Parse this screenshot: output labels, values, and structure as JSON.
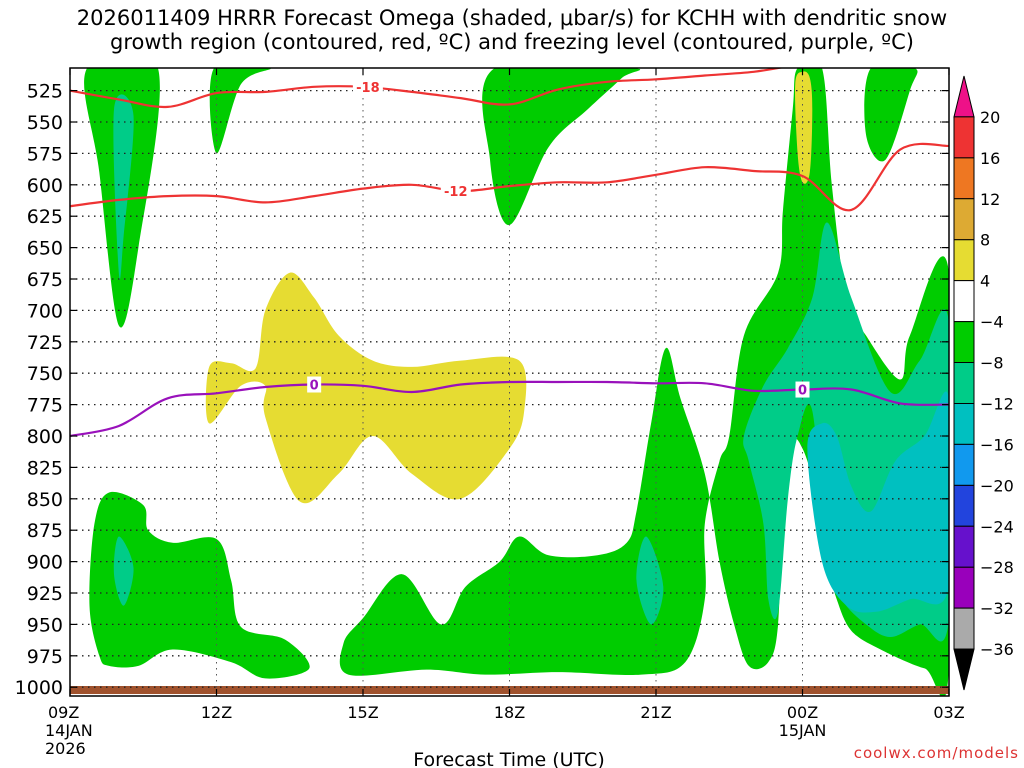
{
  "chart_data": {
    "type": "heatmap",
    "title_line1": "2026011409 HRRR Forecast Omega (shaded, μbar/s) for KCHH with dendritic snow",
    "title_line2": "growth region (contoured, red, ºC) and freezing level (contoured, purple, ºC)",
    "xlabel": "Forecast Time (UTC)",
    "ylabel": "",
    "x_ticks": [
      {
        "hour": 0,
        "label": "09Z",
        "sub1": "14JAN",
        "sub2": "2026"
      },
      {
        "hour": 3,
        "label": "12Z"
      },
      {
        "hour": 6,
        "label": "15Z"
      },
      {
        "hour": 9,
        "label": "18Z"
      },
      {
        "hour": 12,
        "label": "21Z"
      },
      {
        "hour": 15,
        "label": "00Z",
        "sub1": "15JAN"
      },
      {
        "hour": 18,
        "label": "03Z"
      }
    ],
    "xlim": [
      0,
      18
    ],
    "y_ticks": [
      525,
      550,
      575,
      600,
      625,
      650,
      675,
      700,
      725,
      750,
      775,
      800,
      825,
      850,
      875,
      900,
      925,
      950,
      975,
      1000
    ],
    "ylim": [
      1007,
      507
    ],
    "colorbar": {
      "labels": [
        20,
        16,
        12,
        8,
        4,
        -4,
        -8,
        -12,
        -16,
        -20,
        -24,
        -28,
        -32,
        -36
      ],
      "colors": [
        "#ee1188",
        "#ee3333",
        "#ee7722",
        "#ddaa33",
        "#e6dc32",
        "#ffffff",
        "#00cc00",
        "#00cc88",
        "#00c0c0",
        "#1199ee",
        "#2244dd",
        "#6611cc",
        "#9900bb",
        "#aaaaaa",
        "#000000"
      ]
    },
    "series": [
      {
        "name": "-18",
        "kind": "temperature contour",
        "color": "#ee3333",
        "points": [
          [
            0,
            525
          ],
          [
            1,
            532
          ],
          [
            2,
            538
          ],
          [
            3,
            527
          ],
          [
            4,
            526
          ],
          [
            5,
            522
          ],
          [
            6,
            522
          ],
          [
            7,
            526
          ],
          [
            8,
            531
          ],
          [
            9,
            536
          ],
          [
            10,
            524
          ],
          [
            11,
            518
          ],
          [
            12,
            516
          ],
          [
            13,
            513
          ],
          [
            14,
            510
          ],
          [
            14.8,
            505
          ]
        ]
      },
      {
        "name": "-12",
        "kind": "temperature contour",
        "color": "#ee3333",
        "points": [
          [
            0,
            617
          ],
          [
            1,
            612
          ],
          [
            2,
            609
          ],
          [
            3,
            609
          ],
          [
            4,
            614
          ],
          [
            5,
            609
          ],
          [
            6,
            603
          ],
          [
            7,
            600
          ],
          [
            8,
            605
          ],
          [
            9,
            601
          ],
          [
            10,
            598
          ],
          [
            11,
            598
          ],
          [
            12,
            592
          ],
          [
            13,
            586
          ],
          [
            14,
            589
          ],
          [
            15,
            593
          ],
          [
            16,
            620
          ],
          [
            17,
            572
          ],
          [
            18,
            569
          ]
        ]
      },
      {
        "name": "0",
        "kind": "freezing level",
        "color": "#9911bb",
        "points": [
          [
            0,
            800
          ],
          [
            1,
            792
          ],
          [
            2,
            770
          ],
          [
            3,
            766
          ],
          [
            4,
            761
          ],
          [
            5,
            759
          ],
          [
            6,
            760
          ],
          [
            7,
            765
          ],
          [
            8,
            759
          ],
          [
            9,
            757
          ],
          [
            10,
            757
          ],
          [
            11,
            757
          ],
          [
            12,
            758
          ],
          [
            13,
            758
          ],
          [
            14,
            764
          ],
          [
            15,
            763
          ],
          [
            16,
            763
          ],
          [
            17,
            774
          ],
          [
            18,
            775
          ]
        ]
      }
    ],
    "shaded_regions": [
      {
        "level": "-8",
        "color": "#00cc00",
        "points": [
          [
            0.35,
            507
          ],
          [
            0.6,
            590
          ],
          [
            1.0,
            712
          ],
          [
            1.4,
            650
          ],
          [
            1.8,
            507
          ]
        ]
      },
      {
        "level": "-12",
        "color": "#00cc88",
        "points": [
          [
            0.9,
            540
          ],
          [
            1.0,
            670
          ],
          [
            1.1,
            640
          ],
          [
            1.3,
            545
          ]
        ]
      },
      {
        "level": "-8",
        "color": "#00cc00",
        "points": [
          [
            2.95,
            507
          ],
          [
            3.0,
            575
          ],
          [
            3.5,
            520
          ],
          [
            4.1,
            507
          ]
        ]
      },
      {
        "level": "-8",
        "color": "#00cc00",
        "points": [
          [
            8.7,
            507
          ],
          [
            8.6,
            580
          ],
          [
            9.0,
            632
          ],
          [
            9.8,
            570
          ],
          [
            10.6,
            540
          ],
          [
            11.3,
            515
          ],
          [
            11.5,
            507
          ]
        ]
      },
      {
        "level": "4",
        "color": "#e6dc32",
        "points": [
          [
            2.85,
            745
          ],
          [
            2.85,
            790
          ],
          [
            3.5,
            760
          ],
          [
            4.0,
            760
          ],
          [
            4.0,
            785
          ],
          [
            4.7,
            852
          ],
          [
            5.5,
            830
          ],
          [
            6.2,
            800
          ],
          [
            7.0,
            830
          ],
          [
            8.0,
            850
          ],
          [
            9.0,
            810
          ],
          [
            9.3,
            780
          ],
          [
            9.2,
            740
          ],
          [
            8.0,
            740
          ],
          [
            7.0,
            745
          ],
          [
            6.2,
            740
          ],
          [
            5.5,
            720
          ],
          [
            5.0,
            690
          ],
          [
            4.5,
            670
          ],
          [
            4.0,
            700
          ],
          [
            3.8,
            746
          ],
          [
            3.3,
            742
          ]
        ]
      },
      {
        "level": "-8",
        "color": "#00cc00",
        "points": [
          [
            0.5,
            870
          ],
          [
            0.4,
            935
          ],
          [
            0.6,
            975
          ],
          [
            0.8,
            983
          ],
          [
            1.4,
            983
          ],
          [
            2.1,
            970
          ],
          [
            3.3,
            980
          ],
          [
            4.0,
            993
          ],
          [
            4.9,
            985
          ],
          [
            4.4,
            962
          ],
          [
            3.5,
            952
          ],
          [
            3.3,
            915
          ],
          [
            3.0,
            882
          ],
          [
            2.1,
            885
          ],
          [
            1.6,
            875
          ],
          [
            1.5,
            855
          ],
          [
            0.8,
            845
          ]
        ]
      },
      {
        "level": "-12",
        "color": "#00cc88",
        "points": [
          [
            1.0,
            880
          ],
          [
            0.9,
            910
          ],
          [
            1.1,
            935
          ],
          [
            1.3,
            905
          ]
        ]
      },
      {
        "level": "-8",
        "color": "#00cc00",
        "points": [
          [
            5.6,
            965
          ],
          [
            5.7,
            990
          ],
          [
            7.3,
            986
          ],
          [
            8.5,
            990
          ],
          [
            10.0,
            988
          ],
          [
            11.7,
            990
          ],
          [
            12.6,
            980
          ],
          [
            13.0,
            930
          ],
          [
            13.0,
            870
          ],
          [
            13.3,
            820
          ],
          [
            13.5,
            800
          ],
          [
            13.8,
            720
          ],
          [
            14.5,
            670
          ],
          [
            14.6,
            620
          ],
          [
            14.8,
            540
          ],
          [
            14.9,
            507
          ],
          [
            15.4,
            507
          ],
          [
            15.6,
            600
          ],
          [
            15.9,
            690
          ],
          [
            16.3,
            720
          ],
          [
            17.0,
            755
          ],
          [
            17.2,
            720
          ],
          [
            18.0,
            670
          ],
          [
            18.0,
            985
          ],
          [
            17.5,
            985
          ],
          [
            16.6,
            970
          ],
          [
            16.0,
            955
          ],
          [
            15.7,
            930
          ],
          [
            15.5,
            900
          ],
          [
            15.3,
            870
          ],
          [
            15.2,
            835
          ],
          [
            15.0,
            810
          ],
          [
            14.8,
            805
          ],
          [
            14.6,
            850
          ],
          [
            14.5,
            950
          ],
          [
            14.3,
            980
          ],
          [
            13.9,
            983
          ],
          [
            13.6,
            950
          ],
          [
            13.3,
            900
          ],
          [
            13.0,
            830
          ],
          [
            12.5,
            770
          ],
          [
            12.2,
            730
          ],
          [
            11.9,
            790
          ],
          [
            11.6,
            860
          ],
          [
            11.4,
            885
          ],
          [
            10.8,
            895
          ],
          [
            9.8,
            895
          ],
          [
            9.2,
            880
          ],
          [
            8.8,
            900
          ],
          [
            8.1,
            920
          ],
          [
            7.6,
            950
          ],
          [
            6.8,
            910
          ],
          [
            6.0,
            945
          ]
        ]
      },
      {
        "level": "-12",
        "color": "#00cc88",
        "points": [
          [
            13.8,
            800
          ],
          [
            13.9,
            820
          ],
          [
            14.2,
            870
          ],
          [
            14.3,
            930
          ],
          [
            14.5,
            940
          ],
          [
            14.7,
            850
          ],
          [
            14.9,
            800
          ],
          [
            15.2,
            780
          ],
          [
            15.5,
            900
          ],
          [
            15.8,
            930
          ],
          [
            16.3,
            950
          ],
          [
            16.8,
            960
          ],
          [
            17.4,
            950
          ],
          [
            18.0,
            945
          ],
          [
            18.0,
            710
          ],
          [
            17.4,
            740
          ],
          [
            16.8,
            765
          ],
          [
            16.0,
            690
          ],
          [
            15.5,
            630
          ],
          [
            15.2,
            690
          ],
          [
            14.7,
            730
          ],
          [
            14.2,
            760
          ]
        ]
      },
      {
        "level": "-16",
        "color": "#00c0c0",
        "points": [
          [
            15.1,
            810
          ],
          [
            15.4,
            900
          ],
          [
            15.9,
            935
          ],
          [
            16.5,
            940
          ],
          [
            17.2,
            930
          ],
          [
            18.0,
            920
          ],
          [
            18.0,
            770
          ],
          [
            17.5,
            800
          ],
          [
            16.9,
            820
          ],
          [
            16.4,
            860
          ],
          [
            16.0,
            840
          ],
          [
            15.7,
            800
          ],
          [
            15.4,
            790
          ]
        ]
      },
      {
        "level": "-8",
        "color": "#00cc00",
        "points": [
          [
            16.4,
            507
          ],
          [
            16.3,
            560
          ],
          [
            16.7,
            580
          ],
          [
            17.2,
            525
          ],
          [
            17.3,
            507
          ]
        ]
      },
      {
        "level": "4",
        "color": "#e6dc32",
        "points": [
          [
            14.85,
            520
          ],
          [
            14.9,
            575
          ],
          [
            15.0,
            598
          ],
          [
            15.15,
            590
          ],
          [
            15.2,
            540
          ],
          [
            15.15,
            515
          ],
          [
            15.0,
            510
          ]
        ]
      },
      {
        "level": "-12",
        "color": "#00cc88",
        "points": [
          [
            11.8,
            880
          ],
          [
            11.6,
            915
          ],
          [
            11.9,
            950
          ],
          [
            12.15,
            920
          ]
        ]
      }
    ],
    "contour_labels": [
      {
        "text": "-18",
        "x": 6.1,
        "y": 522,
        "color": "#ee3333"
      },
      {
        "text": "-12",
        "x": 7.9,
        "y": 605,
        "color": "#ee3333"
      },
      {
        "text": "0",
        "x": 5.0,
        "y": 759,
        "color": "#9911bb"
      },
      {
        "text": "0",
        "x": 15.0,
        "y": 763,
        "color": "#9911bb"
      }
    ],
    "gridlines": true
  },
  "credit": "coolwx.com/models"
}
